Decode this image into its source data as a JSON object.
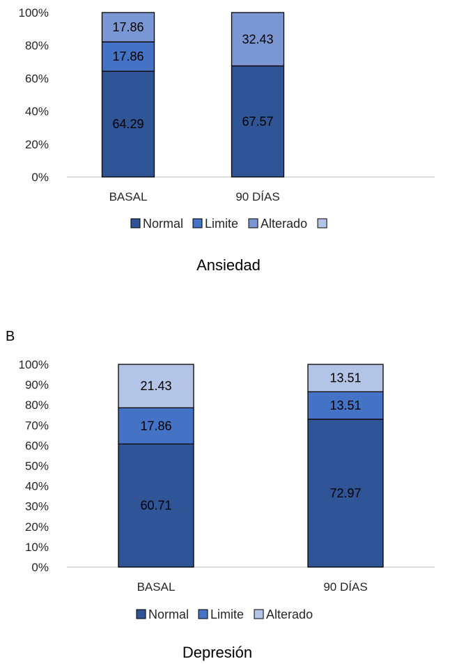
{
  "colors": {
    "normal": "#2F5597",
    "limite": "#4472C4",
    "alterado_a": "#7A97D3",
    "extra_a": "#B4C4E6",
    "alterado_b": "#B4C4E6",
    "axis": "#BFBFBF",
    "border": "#000000"
  },
  "chart_data": [
    {
      "type": "bar",
      "stacked": true,
      "title": "Ansiedad",
      "panel_label": "",
      "categories": [
        "BASAL",
        "90 DÍAS"
      ],
      "series": [
        {
          "name": "Normal",
          "values": [
            64.29,
            67.57
          ]
        },
        {
          "name": "Limite",
          "values": [
            17.86,
            null
          ]
        },
        {
          "name": "Alterado",
          "values": [
            17.86,
            32.43
          ]
        }
      ],
      "legend": [
        "Normal",
        "Limite",
        "Alterado",
        ""
      ],
      "legend_position": "bottom",
      "y_ticks": [
        "0%",
        "20%",
        "40%",
        "60%",
        "80%",
        "100%"
      ],
      "ylim": [
        0,
        100
      ],
      "grid": false
    },
    {
      "type": "bar",
      "stacked": true,
      "title": "Depresión",
      "panel_label": "B",
      "categories": [
        "BASAL",
        "90 DÍAS"
      ],
      "series": [
        {
          "name": "Normal",
          "values": [
            60.71,
            72.97
          ]
        },
        {
          "name": "Limite",
          "values": [
            17.86,
            13.51
          ]
        },
        {
          "name": "Alterado",
          "values": [
            21.43,
            13.51
          ]
        }
      ],
      "legend": [
        "Normal",
        "Limite",
        "Alterado"
      ],
      "legend_position": "bottom",
      "y_ticks": [
        "0%",
        "10%",
        "20%",
        "30%",
        "40%",
        "50%",
        "60%",
        "70%",
        "80%",
        "90%",
        "100%"
      ],
      "ylim": [
        0,
        100
      ],
      "grid": false
    }
  ]
}
